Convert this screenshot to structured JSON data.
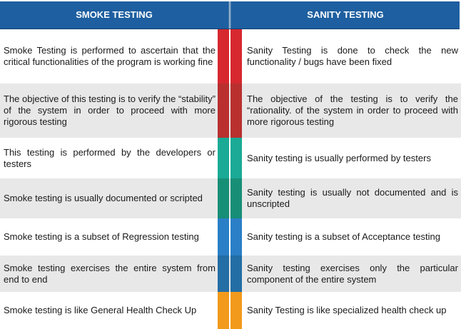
{
  "header": {
    "left": "SMOKE TESTING",
    "right": "SANITY TESTING"
  },
  "colors": {
    "header": "#1d5fa0",
    "red": "#d7282f",
    "red_dark": "#b9302f",
    "teal": "#1aaa96",
    "teal_dark": "#178f76",
    "blue": "#2a7fc6",
    "blue_dark": "#236ea5",
    "orange": "#f29a1b"
  },
  "rows": [
    {
      "smoke": "Smoke Testing is performed to ascertain that the critical functionalities of the program is working fine",
      "sanity": "Sanity Testing is done to check the new functionality / bugs have been fixed"
    },
    {
      "smoke": "The objective of this testing is to verify the “stability” of the system in order to proceed with more rigorous testing",
      "sanity": "The objective of the testing is to verify the “rationality. of the system in order to proceed with more rigorous testing"
    },
    {
      "smoke": "This testing is performed by the developers or testers",
      "sanity": "Sanity testing is usually performed by testers"
    },
    {
      "smoke": "Smoke testing is usually documented or scripted",
      "sanity": "Sanity testing is usually not documented and is unscripted"
    },
    {
      "smoke": "Smoke testing is a subset of Regression testing",
      "sanity": "Sanity testing is a subset of Acceptance testing"
    },
    {
      "smoke": "Smoke testing exercises the entire system from end  to end",
      "sanity": "Sanity testing exercises only the particular component of the entire system"
    },
    {
      "smoke": "Smoke testing is like General Health Check Up",
      "sanity": "Sanity Testing is like specialized health check up"
    }
  ]
}
